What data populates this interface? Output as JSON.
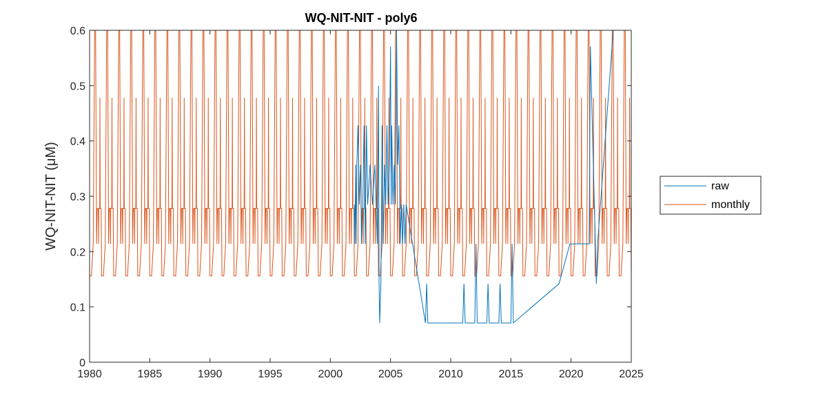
{
  "chart_data": {
    "type": "line",
    "title": "WQ-NIT-NIT - poly6",
    "ylabel": "WQ-NIT-NIT (μM)",
    "xlabel": "",
    "xlim": [
      1980,
      2025
    ],
    "ylim": [
      0,
      0.6
    ],
    "xticks": [
      "1980",
      "1985",
      "1990",
      "1995",
      "2000",
      "2005",
      "2010",
      "2015",
      "2020",
      "2025"
    ],
    "yticks": [
      "0",
      "0.1",
      "0.2",
      "0.3",
      "0.4",
      "0.5",
      "0.6"
    ],
    "grid": false,
    "legend_position": "outside-right",
    "series": [
      {
        "name": "raw",
        "color": "#0072BD",
        "points": [
          [
            2002.0,
            0.285
          ],
          [
            2002.05,
            0.214
          ],
          [
            2002.1,
            0.357
          ],
          [
            2002.15,
            0.214
          ],
          [
            2002.2,
            0.357
          ],
          [
            2002.3,
            0.428
          ],
          [
            2002.4,
            0.285
          ],
          [
            2002.5,
            0.357
          ],
          [
            2002.6,
            0.214
          ],
          [
            2002.7,
            0.285
          ],
          [
            2002.8,
            0.428
          ],
          [
            2002.9,
            0.214
          ],
          [
            2003.0,
            0.428
          ],
          [
            2003.1,
            0.285
          ],
          [
            2003.3,
            0.357
          ],
          [
            2003.5,
            0.285
          ],
          [
            2003.7,
            0.357
          ],
          [
            2003.9,
            0.214
          ],
          [
            2004.0,
            0.5
          ],
          [
            2004.05,
            0.142
          ],
          [
            2004.1,
            0.071
          ],
          [
            2004.2,
            0.142
          ],
          [
            2004.3,
            0.428
          ],
          [
            2004.4,
            0.214
          ],
          [
            2004.5,
            0.357
          ],
          [
            2004.6,
            0.285
          ],
          [
            2004.7,
            0.428
          ],
          [
            2004.8,
            0.285
          ],
          [
            2004.9,
            0.357
          ],
          [
            2005.0,
            0.571
          ],
          [
            2005.05,
            0.285
          ],
          [
            2005.1,
            0.428
          ],
          [
            2005.2,
            0.285
          ],
          [
            2005.3,
            0.357
          ],
          [
            2005.4,
            0.285
          ],
          [
            2005.5,
            0.6
          ],
          [
            2005.6,
            0.357
          ],
          [
            2005.7,
            0.428
          ],
          [
            2005.8,
            0.214
          ],
          [
            2005.9,
            0.285
          ],
          [
            2006.0,
            0.214
          ],
          [
            2006.1,
            0.285
          ],
          [
            2006.2,
            0.214
          ],
          [
            2006.3,
            0.285
          ],
          [
            2007.9,
            0.071
          ],
          [
            2008.0,
            0.142
          ],
          [
            2008.1,
            0.071
          ],
          [
            2011.0,
            0.071
          ],
          [
            2011.1,
            0.142
          ],
          [
            2011.2,
            0.071
          ],
          [
            2012.0,
            0.071
          ],
          [
            2012.1,
            0.214
          ],
          [
            2012.2,
            0.071
          ],
          [
            2013.0,
            0.071
          ],
          [
            2013.1,
            0.142
          ],
          [
            2013.2,
            0.071
          ],
          [
            2014.0,
            0.071
          ],
          [
            2014.1,
            0.142
          ],
          [
            2014.2,
            0.071
          ],
          [
            2015.0,
            0.071
          ],
          [
            2015.1,
            0.214
          ],
          [
            2015.2,
            0.071
          ],
          [
            2019.0,
            0.142
          ],
          [
            2019.9,
            0.214
          ],
          [
            2021.5,
            0.214
          ],
          [
            2021.6,
            0.571
          ],
          [
            2022.1,
            0.142
          ],
          [
            2022.2,
            0.214
          ],
          [
            2023.5,
            0.6
          ]
        ]
      },
      {
        "name": "monthly",
        "color": "#D95319",
        "period": 1.0,
        "cycle": [
          [
            0.0,
            0.156
          ],
          [
            0.15,
            0.156
          ],
          [
            0.3,
            0.214
          ],
          [
            0.42,
            0.6
          ],
          [
            0.5,
            0.6
          ],
          [
            0.58,
            0.214
          ],
          [
            0.63,
            0.278
          ],
          [
            0.72,
            0.278
          ],
          [
            0.74,
            0.214
          ],
          [
            0.76,
            0.278
          ],
          [
            0.84,
            0.278
          ],
          [
            0.86,
            0.478
          ],
          [
            0.88,
            0.278
          ],
          [
            0.96,
            0.278
          ],
          [
            1.0,
            0.156
          ]
        ],
        "start": 1980,
        "end": 2025
      }
    ]
  }
}
